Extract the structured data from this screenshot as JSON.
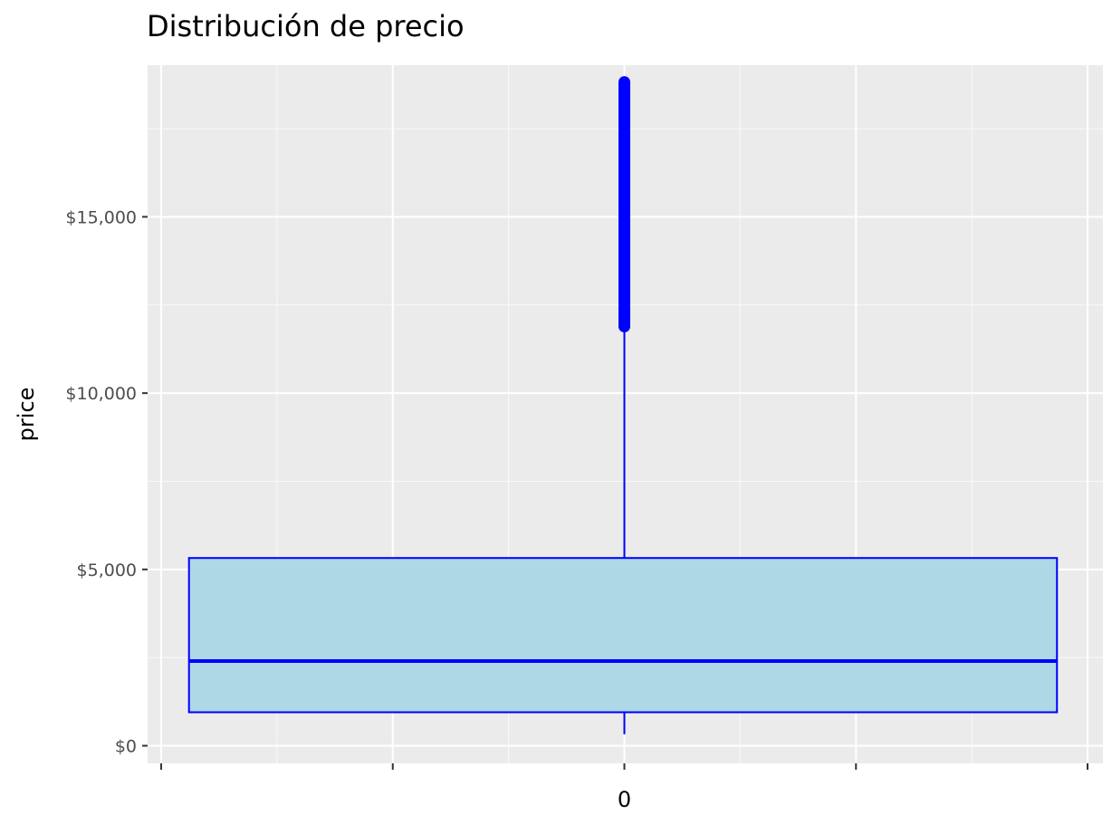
{
  "chart_data": {
    "type": "boxplot",
    "title": "Distribución de precio",
    "xlabel": "",
    "ylabel": "price",
    "categories": [
      "0"
    ],
    "ylim": [
      -500,
      19300
    ],
    "yticks": [
      0,
      5000,
      10000,
      15000
    ],
    "ytick_labels": [
      "$0",
      "$5,000",
      "$10,000",
      "$15,000"
    ],
    "grid": true,
    "box": {
      "category": "0",
      "whisker_low": 326,
      "q1": 950,
      "median": 2401,
      "q3": 5324,
      "whisker_high": 11886,
      "outliers_min": 11890,
      "outliers_max": 18823
    },
    "colors": {
      "panel_bg": "#ebebeb",
      "grid": "#ffffff",
      "box_fill": "#add8e6",
      "box_stroke": "#0000ff",
      "outlier": "#0000ff",
      "tick_text": "#4d4d4d"
    }
  }
}
